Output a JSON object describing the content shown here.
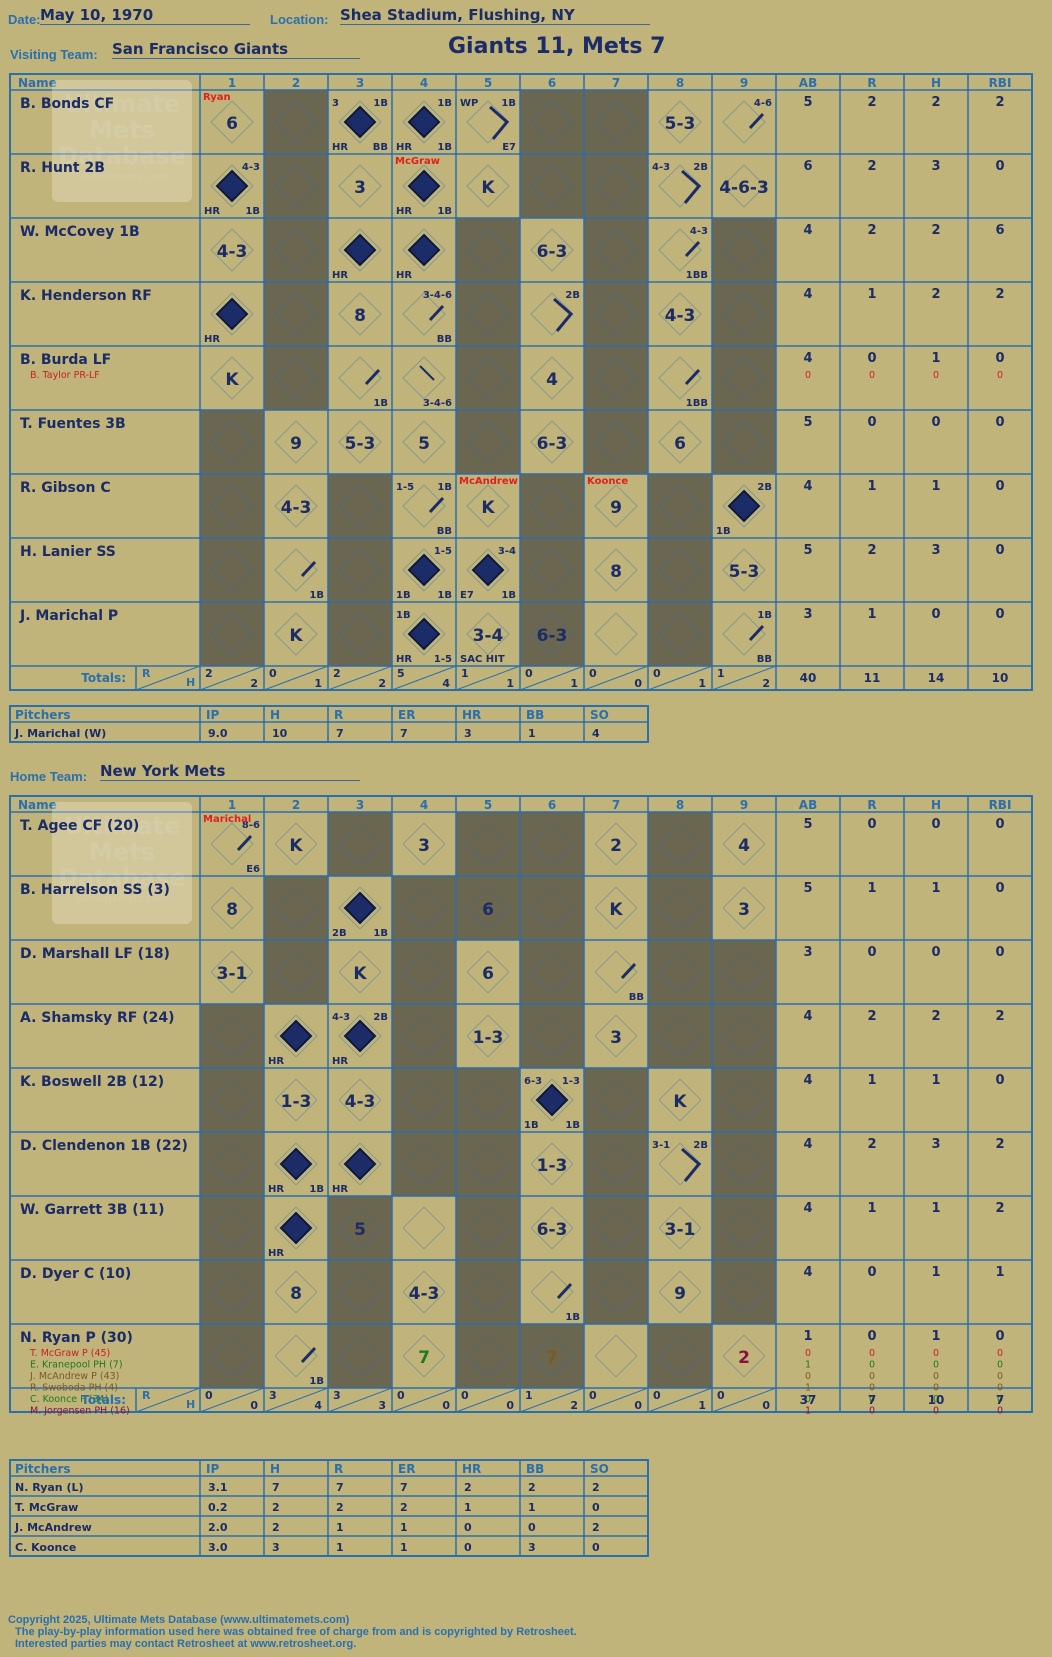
{
  "game": {
    "date_label": "Date:",
    "date": "May 10, 1970",
    "location_label": "Location:",
    "location": "Shea Stadium, Flushing, NY",
    "title": "Giants 11, Mets 7",
    "visiting_label": "Visiting Team:",
    "visiting_team": "San Francisco Giants",
    "home_label": "Home Team:",
    "home_team": "New York Mets"
  },
  "watermark": {
    "line1": "Ultimate",
    "line2": "Mets",
    "line3": "Database",
    "url": "ultimatemets.com"
  },
  "grid_headers": {
    "name": "Name",
    "innings": [
      "1",
      "2",
      "3",
      "4",
      "5",
      "6",
      "7",
      "8",
      "9"
    ],
    "stats": [
      "AB",
      "R",
      "H",
      "RBI"
    ],
    "totals": "Totals:",
    "r_letter": "R",
    "h_letter": "H"
  },
  "pitching_headers": {
    "pitchers": "Pitchers",
    "cols": [
      "IP",
      "H",
      "R",
      "ER",
      "HR",
      "BB",
      "SO"
    ]
  },
  "visitors": {
    "lineup": [
      {
        "name": "B. Bonds CF",
        "stats": [
          "5",
          "2",
          "2",
          "2"
        ]
      },
      {
        "name": "R. Hunt 2B",
        "stats": [
          "6",
          "2",
          "3",
          "0"
        ]
      },
      {
        "name": "W. McCovey 1B",
        "stats": [
          "4",
          "2",
          "2",
          "6"
        ]
      },
      {
        "name": "K. Henderson RF",
        "stats": [
          "4",
          "1",
          "2",
          "2"
        ]
      },
      {
        "name": "B. Burda LF",
        "stats": [
          "4",
          "0",
          "1",
          "0"
        ],
        "subs": [
          {
            "name": "B. Taylor PR-LF",
            "stats": [
              "0",
              "0",
              "0",
              "0"
            ],
            "color": "#cc2020"
          }
        ]
      },
      {
        "name": "T. Fuentes 3B",
        "stats": [
          "5",
          "0",
          "0",
          "0"
        ]
      },
      {
        "name": "R. Gibson C",
        "stats": [
          "4",
          "1",
          "1",
          "0"
        ]
      },
      {
        "name": "H. Lanier SS",
        "stats": [
          "5",
          "2",
          "3",
          "0"
        ]
      },
      {
        "name": "J. Marichal P",
        "stats": [
          "3",
          "1",
          "0",
          "0"
        ]
      }
    ],
    "shaded": [
      [
        2,
        6,
        7
      ],
      [
        2,
        6,
        7
      ],
      [
        2,
        5,
        7,
        9
      ],
      [
        2,
        5,
        7,
        9
      ],
      [
        2,
        5,
        7,
        9
      ],
      [
        1,
        5,
        7,
        9
      ],
      [
        1,
        3,
        6,
        8
      ],
      [
        1,
        3,
        6,
        8
      ],
      [
        1,
        3,
        6,
        8
      ]
    ],
    "cells": [
      [
        {
          "inn": 1,
          "play": "6",
          "pitcher": "Ryan"
        },
        {
          "inn": 3,
          "base": 4,
          "notes": [
            "3",
            "1B",
            "HR",
            "BB"
          ]
        },
        {
          "inn": 4,
          "base": 4,
          "notes": [
            "",
            "1B",
            "HR",
            "1B"
          ]
        },
        {
          "inn": 5,
          "base": 2,
          "notes": [
            "WP",
            "1B",
            "",
            "E7"
          ]
        },
        {
          "inn": 8,
          "play": "5-3"
        },
        {
          "inn": 9,
          "base": 1,
          "notes": [
            "",
            "4-6",
            "",
            ""
          ]
        }
      ],
      [
        {
          "inn": 1,
          "base": 4,
          "notes": [
            "",
            "4-3",
            "HR",
            "1B"
          ]
        },
        {
          "inn": 3,
          "play": "3"
        },
        {
          "inn": 4,
          "base": 4,
          "notes": [
            "",
            "",
            "HR",
            "1B"
          ],
          "pitcher": "McGraw"
        },
        {
          "inn": 5,
          "play": "K"
        },
        {
          "inn": 8,
          "base": 2,
          "notes": [
            "4-3",
            "2B",
            "",
            ""
          ]
        },
        {
          "inn": 9,
          "play": "4-6-3"
        }
      ],
      [
        {
          "inn": 1,
          "play": "4-3"
        },
        {
          "inn": 3,
          "base": 4,
          "notes": [
            "",
            "",
            "HR",
            ""
          ]
        },
        {
          "inn": 4,
          "base": 4,
          "notes": [
            "",
            "",
            "HR",
            ""
          ]
        },
        {
          "inn": 6,
          "play": "6-3"
        },
        {
          "inn": 8,
          "base": 1,
          "notes": [
            "",
            "4-3",
            "",
            "1BB"
          ]
        }
      ],
      [
        {
          "inn": 1,
          "base": 4,
          "notes": [
            "",
            "",
            "HR",
            ""
          ]
        },
        {
          "inn": 3,
          "play": "8"
        },
        {
          "inn": 4,
          "base": 1,
          "notes": [
            "",
            "3-4-6",
            "",
            "BB"
          ]
        },
        {
          "inn": 6,
          "base": 2,
          "notes": [
            "",
            "2B",
            "",
            ""
          ]
        },
        {
          "inn": 8,
          "play": "4-3"
        }
      ],
      [
        {
          "inn": 1,
          "play": "K"
        },
        {
          "inn": 3,
          "base": 1,
          "notes": [
            "",
            "",
            "",
            "1B"
          ]
        },
        {
          "inn": 4,
          "base": 0,
          "notes": [
            "",
            "",
            "",
            "3-4-6"
          ]
        },
        {
          "inn": 6,
          "play": "4"
        },
        {
          "inn": 8,
          "base": 1,
          "notes": [
            "",
            "",
            "",
            "1BB"
          ]
        }
      ],
      [
        {
          "inn": 2,
          "play": "9"
        },
        {
          "inn": 3,
          "play": "5-3"
        },
        {
          "inn": 4,
          "play": "5"
        },
        {
          "inn": 6,
          "play": "6-3"
        },
        {
          "inn": 8,
          "play": "6"
        }
      ],
      [
        {
          "inn": 2,
          "play": "4-3"
        },
        {
          "inn": 4,
          "base": 1,
          "notes": [
            "1-5",
            "1B",
            "",
            "BB"
          ]
        },
        {
          "inn": 5,
          "play": "K",
          "pitcher": "McAndrew"
        },
        {
          "inn": 7,
          "play": "9",
          "pitcher": "Koonce"
        },
        {
          "inn": 9,
          "base": 4,
          "notes": [
            "",
            "2B",
            "1B",
            ""
          ]
        }
      ],
      [
        {
          "inn": 2,
          "base": 1,
          "notes": [
            "",
            "",
            "",
            "1B"
          ]
        },
        {
          "inn": 4,
          "base": 4,
          "notes": [
            "",
            "1-5",
            "1B",
            "1B"
          ]
        },
        {
          "inn": 5,
          "base": 4,
          "notes": [
            "",
            "3-4",
            "E7",
            "1B"
          ]
        },
        {
          "inn": 7,
          "play": "8"
        },
        {
          "inn": 9,
          "play": "5-3"
        }
      ],
      [
        {
          "inn": 2,
          "play": "K"
        },
        {
          "inn": 4,
          "base": 4,
          "notes": [
            "1B",
            "",
            "HR",
            "1-5"
          ]
        },
        {
          "inn": 5,
          "play": "3-4",
          "notes": [
            "",
            "",
            "SAC HIT",
            ""
          ]
        },
        {
          "inn": 6,
          "play": "6-3"
        },
        {
          "inn": 9,
          "base": 1,
          "notes": [
            "",
            "1B",
            "",
            "BB"
          ]
        }
      ]
    ],
    "totals": {
      "innings": [
        [
          "2",
          "2"
        ],
        [
          "0",
          "1"
        ],
        [
          "2",
          "2"
        ],
        [
          "5",
          "4"
        ],
        [
          "1",
          "1"
        ],
        [
          "0",
          "1"
        ],
        [
          "0",
          "0"
        ],
        [
          "0",
          "1"
        ],
        [
          "1",
          "2"
        ]
      ],
      "stats": [
        "40",
        "11",
        "14",
        "10"
      ]
    },
    "pitchers": [
      {
        "name": "J. Marichal (W)",
        "line": [
          "9.0",
          "10",
          "7",
          "7",
          "3",
          "1",
          "4"
        ]
      }
    ]
  },
  "home": {
    "lineup": [
      {
        "name": "T. Agee CF (20)",
        "stats": [
          "5",
          "0",
          "0",
          "0"
        ]
      },
      {
        "name": "B. Harrelson SS (3)",
        "stats": [
          "5",
          "1",
          "1",
          "0"
        ]
      },
      {
        "name": "D. Marshall LF (18)",
        "stats": [
          "3",
          "0",
          "0",
          "0"
        ]
      },
      {
        "name": "A. Shamsky RF (24)",
        "stats": [
          "4",
          "2",
          "2",
          "2"
        ]
      },
      {
        "name": "K. Boswell 2B (12)",
        "stats": [
          "4",
          "1",
          "1",
          "0"
        ]
      },
      {
        "name": "D. Clendenon 1B (22)",
        "stats": [
          "4",
          "2",
          "3",
          "2"
        ]
      },
      {
        "name": "W. Garrett 3B (11)",
        "stats": [
          "4",
          "1",
          "1",
          "2"
        ]
      },
      {
        "name": "D. Dyer C (10)",
        "stats": [
          "4",
          "0",
          "1",
          "1"
        ]
      },
      {
        "name": "N. Ryan P (30)",
        "stats": [
          "1",
          "0",
          "1",
          "0"
        ],
        "subs": [
          {
            "name": "T. McGraw P (45)",
            "stats": [
              "0",
              "0",
              "0",
              "0"
            ],
            "color": "#cc2020"
          },
          {
            "name": "E. Kranepool PH (7)",
            "stats": [
              "1",
              "0",
              "0",
              "0"
            ],
            "color": "#1e7a1e"
          },
          {
            "name": "J. McAndrew P (43)",
            "stats": [
              "0",
              "0",
              "0",
              "0"
            ],
            "color": "#7a5a20"
          },
          {
            "name": "R. Swoboda PH (4)",
            "stats": [
              "1",
              "0",
              "0",
              "0"
            ],
            "color": "#7a5a20"
          },
          {
            "name": "C. Koonce P (34)",
            "stats": [
              "0",
              "0",
              "0",
              "0"
            ],
            "color": "#1e7a1e"
          },
          {
            "name": "M. Jorgensen PH (16)",
            "stats": [
              "1",
              "0",
              "0",
              "0"
            ],
            "color": "#8a1040"
          }
        ]
      }
    ],
    "shaded": [
      [
        3,
        5,
        6,
        8
      ],
      [
        2,
        4,
        5,
        6,
        8
      ],
      [
        2,
        4,
        6,
        8,
        9
      ],
      [
        1,
        4,
        6,
        8,
        9
      ],
      [
        1,
        4,
        5,
        7,
        9
      ],
      [
        1,
        4,
        5,
        7,
        9
      ],
      [
        1,
        3,
        5,
        7,
        9
      ],
      [
        1,
        3,
        5,
        7,
        9
      ],
      [
        1,
        3,
        5,
        6,
        8
      ]
    ],
    "cells": [
      [
        {
          "inn": 1,
          "base": 1,
          "notes": [
            "",
            "8-6",
            "",
            "E6"
          ],
          "pitcher": "Marichal"
        },
        {
          "inn": 2,
          "play": "K"
        },
        {
          "inn": 4,
          "play": "3"
        },
        {
          "inn": 7,
          "play": "2"
        },
        {
          "inn": 9,
          "play": "4"
        }
      ],
      [
        {
          "inn": 1,
          "play": "8"
        },
        {
          "inn": 3,
          "base": 4,
          "notes": [
            "",
            "",
            "2B",
            "1B"
          ]
        },
        {
          "inn": 5,
          "play": "6"
        },
        {
          "inn": 7,
          "play": "K"
        },
        {
          "inn": 9,
          "play": "3"
        }
      ],
      [
        {
          "inn": 1,
          "play": "3-1"
        },
        {
          "inn": 3,
          "play": "K"
        },
        {
          "inn": 5,
          "play": "6"
        },
        {
          "inn": 7,
          "base": 1,
          "notes": [
            "",
            "",
            "",
            "BB"
          ]
        }
      ],
      [
        {
          "inn": 2,
          "base": 4,
          "notes": [
            "",
            "",
            "HR",
            ""
          ]
        },
        {
          "inn": 3,
          "base": 4,
          "notes": [
            "4-3",
            "2B",
            "HR",
            ""
          ]
        },
        {
          "inn": 5,
          "play": "1-3"
        },
        {
          "inn": 7,
          "play": "3"
        }
      ],
      [
        {
          "inn": 2,
          "play": "1-3"
        },
        {
          "inn": 3,
          "play": "4-3"
        },
        {
          "inn": 6,
          "base": 4,
          "notes": [
            "6-3",
            "1-3",
            "1B",
            "1B"
          ]
        },
        {
          "inn": 8,
          "play": "K"
        }
      ],
      [
        {
          "inn": 2,
          "base": 4,
          "notes": [
            "",
            "",
            "HR",
            "1B"
          ]
        },
        {
          "inn": 3,
          "base": 4,
          "notes": [
            "",
            "",
            "HR",
            ""
          ]
        },
        {
          "inn": 6,
          "play": "1-3"
        },
        {
          "inn": 8,
          "base": 2,
          "notes": [
            "3-1",
            "2B",
            "",
            ""
          ]
        }
      ],
      [
        {
          "inn": 2,
          "base": 4,
          "notes": [
            "",
            "",
            "HR",
            ""
          ]
        },
        {
          "inn": 3,
          "play": "5"
        },
        {
          "inn": 6,
          "play": "6-3"
        },
        {
          "inn": 8,
          "play": "3-1"
        }
      ],
      [
        {
          "inn": 2,
          "play": "8"
        },
        {
          "inn": 4,
          "play": "4-3"
        },
        {
          "inn": 6,
          "base": 1,
          "notes": [
            "",
            "",
            "",
            "1B"
          ]
        },
        {
          "inn": 8,
          "play": "9"
        }
      ],
      [
        {
          "inn": 2,
          "base": 1,
          "notes": [
            "",
            "",
            "",
            "1B"
          ]
        },
        {
          "inn": 4,
          "play": "7",
          "color": "#1e7a1e"
        },
        {
          "inn": 6,
          "play": "7",
          "color": "#7a5a20"
        },
        {
          "inn": 9,
          "play": "2",
          "color": "#8a1040"
        }
      ]
    ],
    "totals": {
      "innings": [
        [
          "0",
          "0"
        ],
        [
          "3",
          "4"
        ],
        [
          "3",
          "3"
        ],
        [
          "0",
          "0"
        ],
        [
          "0",
          "0"
        ],
        [
          "1",
          "2"
        ],
        [
          "0",
          "0"
        ],
        [
          "0",
          "1"
        ],
        [
          "0",
          "0"
        ]
      ],
      "stats": [
        "37",
        "7",
        "10",
        "7"
      ]
    },
    "pitchers": [
      {
        "name": "N. Ryan (L)",
        "line": [
          "3.1",
          "7",
          "7",
          "7",
          "2",
          "2",
          "2"
        ]
      },
      {
        "name": "T. McGraw",
        "line": [
          "0.2",
          "2",
          "2",
          "2",
          "1",
          "1",
          "0"
        ]
      },
      {
        "name": "J. McAndrew",
        "line": [
          "2.0",
          "2",
          "1",
          "1",
          "0",
          "0",
          "2"
        ]
      },
      {
        "name": "C. Koonce",
        "line": [
          "3.0",
          "3",
          "1",
          "1",
          "0",
          "3",
          "0"
        ]
      }
    ]
  },
  "footer": {
    "copyright": "Copyright 2025, Ultimate Mets Database (www.ultimatemets.com)",
    "line2": "The play-by-play information used here was obtained free of charge from and is copyrighted by Retrosheet.",
    "line3": "Interested parties may contact Retrosheet at www.retrosheet.org."
  },
  "colors": {
    "background": "#c0b47b",
    "grid": "#2a6fae",
    "shade": "#6b6650",
    "ink": "#1c2c66",
    "pitcher_change": "#e02020"
  }
}
